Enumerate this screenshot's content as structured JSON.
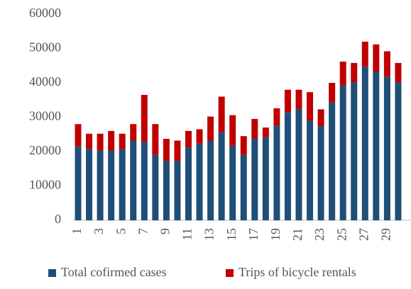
{
  "chart_data": {
    "type": "stacked_bar",
    "categories": [
      "1",
      null,
      "3",
      null,
      "5",
      null,
      "7",
      null,
      "9",
      null,
      "11",
      null,
      "13",
      null,
      "15",
      null,
      "17",
      null,
      "19",
      null,
      "21",
      null,
      "23",
      null,
      "25",
      null,
      "27",
      null,
      "29",
      null
    ],
    "series": [
      {
        "name": "Total cofirmed cases",
        "color": "#1f4e79",
        "values": [
          21500,
          20800,
          20300,
          20300,
          20800,
          23200,
          22800,
          19000,
          17300,
          17300,
          21200,
          22300,
          23200,
          25600,
          21700,
          19000,
          23700,
          24100,
          27500,
          31500,
          32400,
          29000,
          27400,
          34300,
          39300,
          40200,
          44700,
          43300,
          41800,
          40200
        ]
      },
      {
        "name": "Trips of bicycle rentals",
        "color": "#c00000",
        "values": [
          6500,
          4400,
          4900,
          5700,
          4400,
          4800,
          13700,
          9000,
          6400,
          5900,
          4800,
          4200,
          7000,
          10400,
          8900,
          5500,
          5800,
          2900,
          5100,
          6500,
          5600,
          8300,
          4900,
          5700,
          6900,
          5600,
          7300,
          7900,
          7400,
          5600
        ]
      }
    ],
    "ylim": [
      0,
      60000
    ],
    "yticks": [
      0,
      10000,
      20000,
      30000,
      40000,
      50000,
      60000
    ]
  }
}
